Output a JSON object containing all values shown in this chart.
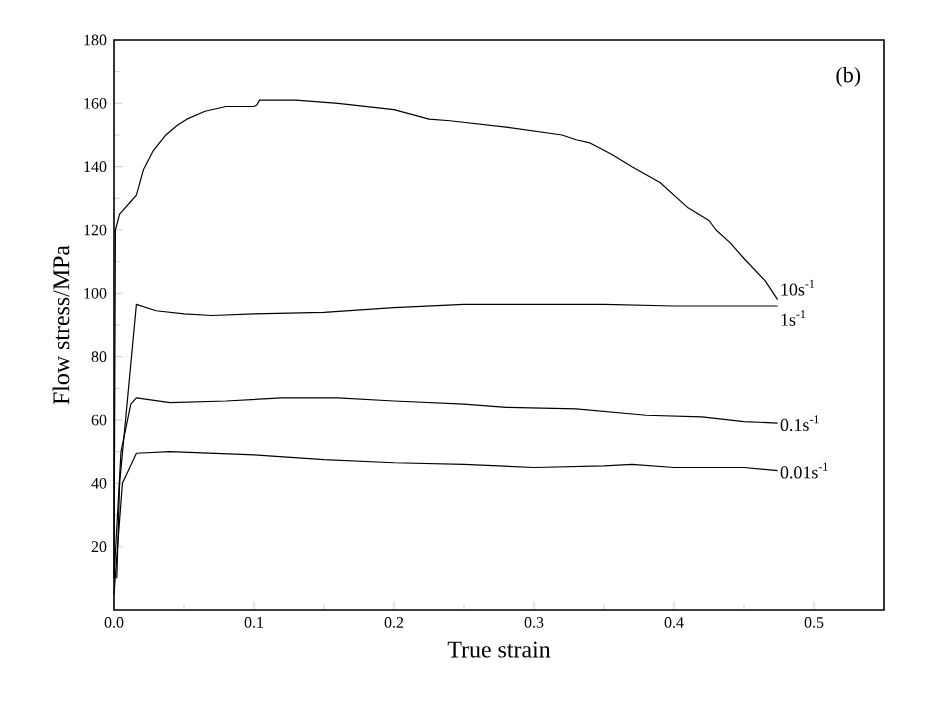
{
  "chart_data": {
    "type": "line",
    "xlabel": "True strain",
    "ylabel": "Flow stress/MPa",
    "annotations": [
      "(b)"
    ],
    "xlim": [
      0,
      0.55
    ],
    "ylim": [
      0,
      180
    ],
    "xticks": [
      {
        "value": 0,
        "label": "0.0"
      },
      0.1,
      0.2,
      0.3,
      0.4,
      0.5
    ],
    "yticks": [
      20,
      40,
      60,
      80,
      100,
      120,
      140,
      160,
      180
    ],
    "grid": false,
    "legend": false,
    "marker": "none",
    "line_style": "solid",
    "series": [
      {
        "name": "10s$^{-1}$",
        "color": "#000000",
        "x": [
          0,
          0.001,
          0.004,
          0.012,
          0.016,
          0.021,
          0.028,
          0.037,
          0.045,
          0.052,
          0.065,
          0.08,
          0.1,
          0.102,
          0.104,
          0.13,
          0.16,
          0.2,
          0.225,
          0.24,
          0.28,
          0.32,
          0.33,
          0.34,
          0.355,
          0.37,
          0.39,
          0.41,
          0.425,
          0.43,
          0.44,
          0.45,
          0.465,
          0.474
        ],
        "values": [
          10,
          120,
          125,
          129,
          131,
          139,
          145,
          150,
          153,
          155,
          157.5,
          159,
          159,
          159.5,
          161,
          161,
          160,
          158,
          155,
          154.5,
          152.5,
          150,
          148.5,
          147.5,
          144,
          140,
          135,
          127,
          123,
          120,
          116,
          111,
          104,
          98
        ]
      },
      {
        "name": "1s$^{-1}$",
        "color": "#000000",
        "x": [
          0.002,
          0.004,
          0.016,
          0.03,
          0.05,
          0.07,
          0.1,
          0.15,
          0.2,
          0.25,
          0.3,
          0.35,
          0.4,
          0.45,
          0.474
        ],
        "values": [
          10,
          40,
          96.5,
          94.5,
          93.5,
          93,
          93.5,
          94,
          95.5,
          96.5,
          96.5,
          96.5,
          96,
          96,
          96
        ]
      },
      {
        "name": "0.1s$^{-1}$",
        "color": "#000000",
        "x": [
          0,
          0.005,
          0.012,
          0.016,
          0.04,
          0.08,
          0.12,
          0.16,
          0.2,
          0.25,
          0.28,
          0.33,
          0.38,
          0.42,
          0.45,
          0.474
        ],
        "values": [
          10,
          50,
          65,
          67,
          65.5,
          66,
          67,
          67,
          66,
          65,
          64,
          63.5,
          61.5,
          61,
          59.5,
          59
        ]
      },
      {
        "name": "0.01s$^{-1}$",
        "color": "#000000",
        "x": [
          0,
          0.006,
          0.016,
          0.04,
          0.1,
          0.15,
          0.2,
          0.25,
          0.3,
          0.35,
          0.37,
          0.4,
          0.45,
          0.474
        ],
        "values": [
          5,
          40,
          49.5,
          50,
          49,
          47.5,
          46.5,
          46,
          45,
          45.5,
          46,
          45,
          45,
          44
        ]
      }
    ]
  }
}
